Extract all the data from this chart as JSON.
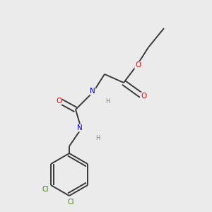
{
  "background_color": "#ebebeb",
  "bond_color": "#3a3a3a",
  "atom_colors": {
    "O": "#ff0000",
    "N": "#0000cc",
    "Cl": "#3a8000",
    "C": "#3a3a3a",
    "H": "#808080"
  },
  "figsize": [
    3.0,
    3.0
  ],
  "dpi": 100
}
